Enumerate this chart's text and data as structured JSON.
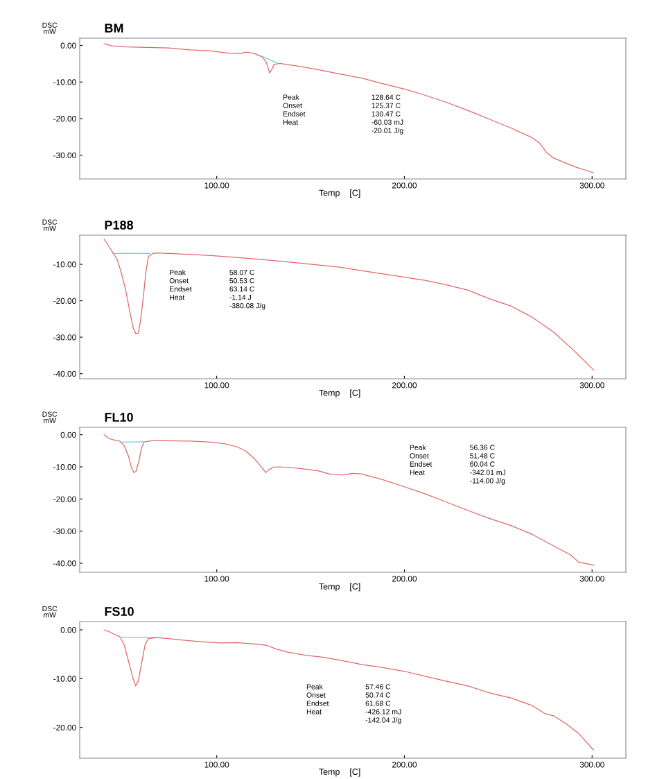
{
  "chart_data": [
    {
      "type": "line",
      "title": "BM",
      "xlabel": "Temp    [C]",
      "ylabel": "DSC\nmW",
      "xlim": [
        27,
        318
      ],
      "xticks": [
        {
          "value": 100,
          "label": "100.00"
        },
        {
          "value": 200,
          "label": "200.00"
        },
        {
          "value": 300,
          "label": "300.00"
        }
      ],
      "ylim": [
        -36.5,
        2
      ],
      "yticks": [
        {
          "value": 0,
          "label": "0.00"
        },
        {
          "value": -10,
          "label": "-10.00"
        },
        {
          "value": -20,
          "label": "-20.00"
        },
        {
          "value": -30,
          "label": "-30.00"
        }
      ],
      "series": [
        {
          "color": "#e06666",
          "x": [
            40,
            43.9,
            51.8,
            74.5,
            86,
            97,
            106,
            113,
            115.5,
            120,
            124.5,
            126.4,
            128.2,
            129.5,
            130.5,
            133.6,
            142.7,
            154,
            165.5,
            177,
            188,
            200,
            211,
            222,
            234,
            245,
            257,
            268,
            272,
            276,
            279.5,
            291,
            300.7
          ],
          "values": [
            0.5,
            -0.1,
            -0.4,
            -0.7,
            -1.2,
            -1.5,
            -2.1,
            -2.2,
            -1.8,
            -2.2,
            -3.2,
            -4.6,
            -7.5,
            -6.4,
            -5.2,
            -4.9,
            -5.6,
            -6.6,
            -7.8,
            -8.9,
            -10.4,
            -11.9,
            -13.6,
            -15.5,
            -17.8,
            -20.1,
            -22.6,
            -25.2,
            -26.7,
            -29.4,
            -30.8,
            -33.2,
            -34.8
          ]
        },
        {
          "color": "#5fd3e3",
          "x": [
            123.4,
            132.5
          ],
          "values": [
            -2.8,
            -4.9
          ]
        }
      ],
      "annotations": [
        "Peak",
        "128.64 C",
        "Onset",
        "125.37 C",
        "Endset",
        "130.47 C",
        "Heat",
        "-60.03 mJ",
        "-20.01 J/g"
      ]
    },
    {
      "type": "line",
      "title": "P188",
      "xlabel": "Temp    [C]",
      "ylabel": "DSC\nmW",
      "xlim": [
        27,
        318
      ],
      "xticks": [
        {
          "value": 100,
          "label": "100.00"
        },
        {
          "value": 200,
          "label": "200.00"
        },
        {
          "value": 300,
          "label": "300.00"
        }
      ],
      "ylim": [
        -41.4,
        -2
      ],
      "yticks": [
        {
          "value": -10,
          "label": "-10.00"
        },
        {
          "value": -20,
          "label": "-20.00"
        },
        {
          "value": -30,
          "label": "-30.00"
        },
        {
          "value": -40,
          "label": "-40.00"
        }
      ],
      "series": [
        {
          "color": "#e06666",
          "x": [
            40,
            42.3,
            44.5,
            46.8,
            49,
            51.4,
            53.6,
            55.5,
            56.8,
            58.2,
            59.5,
            61,
            62.3,
            63.6,
            66,
            68,
            74.5,
            86,
            97,
            120,
            142.7,
            165.5,
            188,
            211,
            222,
            234,
            245,
            257,
            268,
            279.5,
            291,
            301
          ],
          "values": [
            -3.1,
            -4.9,
            -6.7,
            -8.5,
            -12.0,
            -16.8,
            -22.7,
            -27.4,
            -29.0,
            -28.9,
            -25.1,
            -18.5,
            -12.0,
            -7.9,
            -7.0,
            -6.9,
            -7.0,
            -7.3,
            -7.6,
            -8.5,
            -9.6,
            -10.8,
            -12.6,
            -14.4,
            -15.6,
            -17.1,
            -19.4,
            -21.5,
            -24.5,
            -28.6,
            -34.0,
            -39.1
          ]
        },
        {
          "color": "#5fd3e3",
          "x": [
            44.5,
            64.3
          ],
          "values": [
            -7.0,
            -7.0
          ]
        }
      ],
      "annotations": [
        "Peak",
        "58.07 C",
        "Onset",
        "50.53 C",
        "Endset",
        "63.14 C",
        "Heat",
        "-1.14 J",
        "-380.08 J/g"
      ]
    },
    {
      "type": "line",
      "title": "FL10",
      "xlabel": "Temp    [C]",
      "ylabel": "DSC\nmW",
      "xlim": [
        27,
        318
      ],
      "xticks": [
        {
          "value": 100,
          "label": "100.00"
        },
        {
          "value": 200,
          "label": "200.00"
        },
        {
          "value": 300,
          "label": "300.00"
        }
      ],
      "ylim": [
        -42.8,
        2.3
      ],
      "yticks": [
        {
          "value": 0,
          "label": "0.00"
        },
        {
          "value": -10,
          "label": "-10.00"
        },
        {
          "value": -20,
          "label": "-20.00"
        },
        {
          "value": -30,
          "label": "-30.00"
        },
        {
          "value": -40,
          "label": "-40.00"
        }
      ],
      "series": [
        {
          "color": "#e06666",
          "x": [
            40,
            42.3,
            45,
            48.4,
            50.7,
            53,
            54.5,
            55.9,
            57,
            58.6,
            60,
            61.4,
            65.5,
            74.5,
            86,
            97,
            104,
            110.9,
            115.5,
            120,
            123.4,
            126.1,
            127.5,
            130.2,
            133.6,
            142.7,
            154,
            161,
            167.7,
            172.3,
            177,
            188,
            200,
            211,
            222,
            234,
            245,
            257,
            268,
            279.5,
            288.6,
            293,
            301
          ],
          "values": [
            0.0,
            -1.1,
            -1.6,
            -2.0,
            -3.4,
            -6.7,
            -10.1,
            -11.8,
            -11.4,
            -8.1,
            -4.0,
            -2.2,
            -1.9,
            -1.9,
            -2.0,
            -2.3,
            -2.8,
            -3.8,
            -5.1,
            -7.4,
            -9.7,
            -11.8,
            -11.0,
            -10.1,
            -10.0,
            -10.4,
            -11.2,
            -12.4,
            -12.5,
            -12.0,
            -12.2,
            -13.9,
            -16.2,
            -18.4,
            -20.9,
            -23.6,
            -26.0,
            -28.3,
            -31.0,
            -34.6,
            -37.4,
            -39.7,
            -40.6
          ]
        },
        {
          "color": "#5fd3e3",
          "x": [
            48.4,
            62
          ],
          "values": [
            -2.3,
            -2.2
          ]
        }
      ],
      "annotations": [
        "Peak",
        "56.36 C",
        "Onset",
        "51.48 C",
        "Endset",
        "60.04 C",
        "Heat",
        "-342.01 mJ",
        "-114.00 J/g"
      ]
    },
    {
      "type": "line",
      "title": "FS10",
      "xlabel": "Temp    [C]",
      "ylabel": "DSC\nmW",
      "xlim": [
        27,
        318
      ],
      "xticks": [
        {
          "value": 100,
          "label": "100.00"
        },
        {
          "value": 200,
          "label": "200.00"
        },
        {
          "value": 300,
          "label": "300.00"
        }
      ],
      "ylim": [
        -26.3,
        1.7
      ],
      "yticks": [
        {
          "value": 0,
          "label": "0.00"
        },
        {
          "value": -10,
          "label": "-10.00"
        },
        {
          "value": -20,
          "label": "-20.00"
        }
      ],
      "series": [
        {
          "color": "#e06666",
          "x": [
            40,
            42.7,
            46,
            48.4,
            50.7,
            53,
            55.2,
            56.8,
            58.2,
            60,
            61.8,
            63.6,
            67.7,
            74.5,
            81.4,
            90.5,
            101.8,
            110.9,
            120,
            126.8,
            131.4,
            138.2,
            147.3,
            156.4,
            165.5,
            177,
            188,
            200,
            211,
            222,
            234,
            245,
            257,
            268,
            275,
            279.5,
            286.4,
            293,
            300.7
          ],
          "values": [
            0.0,
            -0.4,
            -1.0,
            -1.4,
            -3.1,
            -6.4,
            -9.7,
            -11.5,
            -10.5,
            -6.8,
            -3.1,
            -1.8,
            -1.6,
            -1.8,
            -2.1,
            -2.4,
            -2.7,
            -2.6,
            -2.9,
            -3.2,
            -3.9,
            -4.6,
            -5.2,
            -5.6,
            -6.2,
            -7.1,
            -7.7,
            -8.5,
            -9.5,
            -10.5,
            -11.5,
            -12.9,
            -14.0,
            -15.5,
            -17.2,
            -17.6,
            -19.3,
            -21.3,
            -24.6
          ]
        },
        {
          "color": "#5fd3e3",
          "x": [
            48.4,
            66.6
          ],
          "values": [
            -1.5,
            -1.5
          ]
        }
      ],
      "annotations": [
        "Peak",
        "57.46 C",
        "Onset",
        "50.74 C",
        "Endset",
        "61.68 C",
        "Heat",
        "-426.12 mJ",
        "-142.04 J/g"
      ]
    }
  ]
}
